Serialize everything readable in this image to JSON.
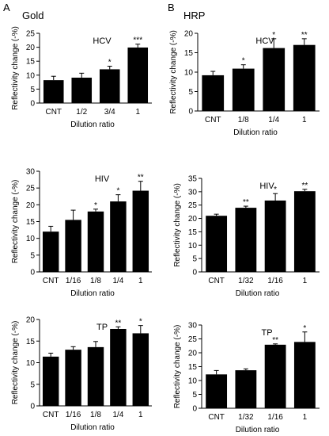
{
  "panels": [
    {
      "letter": "A",
      "label": "Gold"
    },
    {
      "letter": "B",
      "label": "HRP"
    }
  ],
  "chart_data": [
    {
      "type": "bar",
      "panel": "A",
      "title": "HCV",
      "xlabel": "Dilution ratio",
      "ylabel": "Reflectivity change (-%)",
      "categories": [
        "CNT",
        "1/2",
        "3/4",
        "1"
      ],
      "values": [
        8.2,
        9.1,
        12.1,
        19.9
      ],
      "errors": [
        1.4,
        1.6,
        1.1,
        1.2
      ],
      "significance": [
        "",
        "",
        "*",
        "***"
      ],
      "ylim": [
        0,
        25
      ],
      "yticks": [
        0,
        5,
        10,
        15,
        20,
        25
      ],
      "bar_color": "#000000"
    },
    {
      "type": "bar",
      "panel": "B",
      "title": "HCV",
      "xlabel": "Dilution ratio",
      "ylabel": "Reflectivity change (-%)",
      "categories": [
        "CNT",
        "1/8",
        "1/4",
        "1"
      ],
      "values": [
        9.2,
        10.9,
        16.2,
        17.0
      ],
      "errors": [
        1.0,
        1.0,
        2.4,
        1.6
      ],
      "significance": [
        "",
        "*",
        "*",
        "**"
      ],
      "ylim": [
        0,
        20
      ],
      "yticks": [
        0,
        5,
        10,
        15,
        20
      ],
      "bar_color": "#000000"
    },
    {
      "type": "bar",
      "panel": "A",
      "title": "HIV",
      "xlabel": "Dilution ratio",
      "ylabel": "Reflectivity change (-%)",
      "categories": [
        "CNT",
        "1/16",
        "1/8",
        "1/4",
        "1"
      ],
      "values": [
        12.0,
        15.5,
        18.0,
        21.0,
        24.2
      ],
      "errors": [
        1.6,
        2.9,
        0.7,
        2.0,
        2.8
      ],
      "significance": [
        "",
        "",
        "*",
        "*",
        "**"
      ],
      "ylim": [
        0,
        30
      ],
      "yticks": [
        0,
        5,
        10,
        15,
        20,
        25,
        30
      ],
      "bar_color": "#000000"
    },
    {
      "type": "bar",
      "panel": "B",
      "title": "HIV",
      "xlabel": "Dilution ratio",
      "ylabel": "Reflectivity change (-%)",
      "categories": [
        "CNT",
        "1/32",
        "1/16",
        "1"
      ],
      "values": [
        21.0,
        24.0,
        26.7,
        30.2
      ],
      "errors": [
        0.6,
        0.6,
        2.6,
        0.7
      ],
      "significance": [
        "",
        "**",
        "*",
        "**"
      ],
      "ylim": [
        0,
        35
      ],
      "yticks": [
        0,
        5,
        10,
        15,
        20,
        25,
        30,
        35
      ],
      "bar_color": "#000000"
    },
    {
      "type": "bar",
      "panel": "A",
      "title": "TP",
      "xlabel": "Dilution ratio",
      "ylabel": "Reflectivity change (-%)",
      "categories": [
        "CNT",
        "1/16",
        "1/8",
        "1/4",
        "1"
      ],
      "values": [
        11.4,
        13.0,
        13.6,
        17.8,
        16.8
      ],
      "errors": [
        0.8,
        0.7,
        1.3,
        0.5,
        1.8
      ],
      "significance": [
        "",
        "",
        "",
        "**",
        "*"
      ],
      "ylim": [
        0,
        20
      ],
      "yticks": [
        0,
        5,
        10,
        15,
        20
      ],
      "bar_color": "#000000"
    },
    {
      "type": "bar",
      "panel": "B",
      "title": "TP",
      "xlabel": "Dilution ratio",
      "ylabel": "Reflectivity change (-%)",
      "categories": [
        "CNT",
        "1/32",
        "1/16",
        "1"
      ],
      "values": [
        12.2,
        13.7,
        22.9,
        23.9
      ],
      "errors": [
        1.4,
        0.5,
        0.3,
        3.6
      ],
      "significance": [
        "",
        "",
        "**",
        "*"
      ],
      "ylim": [
        0,
        30
      ],
      "yticks": [
        0,
        5,
        10,
        15,
        20,
        25,
        30
      ],
      "bar_color": "#000000"
    }
  ]
}
